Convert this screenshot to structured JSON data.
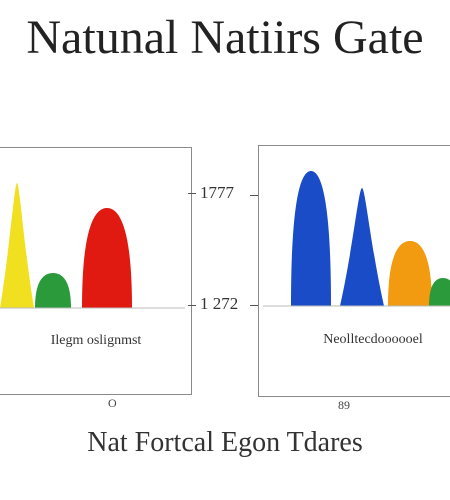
{
  "chart_data": {
    "title": "Natunal Natiirs Gate",
    "subtitle": "Nat Fortcal Egon Tdares",
    "center_ticks": [
      "1777",
      "1 272"
    ],
    "charts": [
      {
        "type": "area",
        "label": "Ilegm oslignmst",
        "below_label": "O",
        "peaks": [
          {
            "color": "#f0e020",
            "value": 125
          },
          {
            "color": "#2a9a3a",
            "value": 35
          },
          {
            "color": "#e01a10",
            "value": 100
          }
        ]
      },
      {
        "type": "area",
        "label": "Neolltecdoooooel",
        "below_label": "89",
        "peaks": [
          {
            "color": "#1a4cc8",
            "value": 135
          },
          {
            "color": "#1a4cc8",
            "value": 118
          },
          {
            "color": "#f29a10",
            "value": 65
          },
          {
            "color": "#2a9a3a",
            "value": 28
          }
        ]
      }
    ]
  }
}
